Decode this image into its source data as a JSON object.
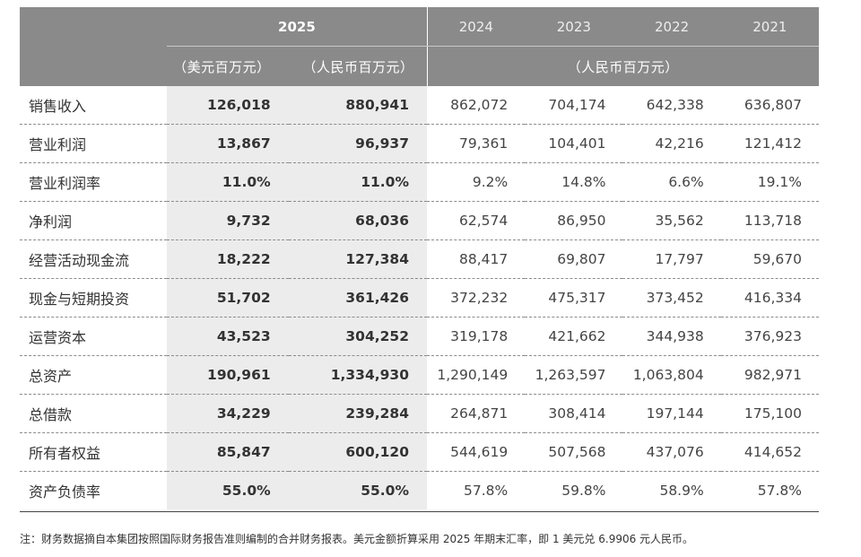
{
  "header": {
    "year_main": "2025",
    "years": [
      "2024",
      "2023",
      "2022",
      "2021"
    ],
    "unit_usd": "（美元百万元）",
    "unit_cny": "（人民币百万元）",
    "unit_hist": "（人民币百万元）"
  },
  "rows": [
    {
      "label": "销售收入",
      "usd": "126,018",
      "cny": "880,941",
      "y2024": "862,072",
      "y2023": "704,174",
      "y2022": "642,338",
      "y2021": "636,807"
    },
    {
      "label": "营业利润",
      "usd": "13,867",
      "cny": "96,937",
      "y2024": "79,361",
      "y2023": "104,401",
      "y2022": "42,216",
      "y2021": "121,412"
    },
    {
      "label": "营业利润率",
      "usd": "11.0%",
      "cny": "11.0%",
      "y2024": "9.2%",
      "y2023": "14.8%",
      "y2022": "6.6%",
      "y2021": "19.1%"
    },
    {
      "label": "净利润",
      "usd": "9,732",
      "cny": "68,036",
      "y2024": "62,574",
      "y2023": "86,950",
      "y2022": "35,562",
      "y2021": "113,718"
    },
    {
      "label": "经营活动现金流",
      "usd": "18,222",
      "cny": "127,384",
      "y2024": "88,417",
      "y2023": "69,807",
      "y2022": "17,797",
      "y2021": "59,670"
    },
    {
      "label": "现金与短期投资",
      "usd": "51,702",
      "cny": "361,426",
      "y2024": "372,232",
      "y2023": "475,317",
      "y2022": "373,452",
      "y2021": "416,334"
    },
    {
      "label": "运营资本",
      "usd": "43,523",
      "cny": "304,252",
      "y2024": "319,178",
      "y2023": "421,662",
      "y2022": "344,938",
      "y2021": "376,923"
    },
    {
      "label": "总资产",
      "usd": "190,961",
      "cny": "1,334,930",
      "y2024": "1,290,149",
      "y2023": "1,263,597",
      "y2022": "1,063,804",
      "y2021": "982,971"
    },
    {
      "label": "总借款",
      "usd": "34,229",
      "cny": "239,284",
      "y2024": "264,871",
      "y2023": "308,414",
      "y2022": "197,144",
      "y2021": "175,100"
    },
    {
      "label": "所有者权益",
      "usd": "85,847",
      "cny": "600,120",
      "y2024": "544,619",
      "y2023": "507,568",
      "y2022": "437,076",
      "y2021": "414,652"
    },
    {
      "label": "资产负债率",
      "usd": "55.0%",
      "cny": "55.0%",
      "y2024": "57.8%",
      "y2023": "59.8%",
      "y2022": "58.9%",
      "y2021": "57.8%"
    }
  ],
  "footnote": "注：财务数据摘自本集团按照国际财务报告准则编制的合并财务报表。美元金额折算采用 2025 年期末汇率，即 1 美元兑 6.9906 元人民币。",
  "colors": {
    "header_bg": "#8a8a8a",
    "highlight_bg": "#ececec",
    "text": "#333333"
  }
}
